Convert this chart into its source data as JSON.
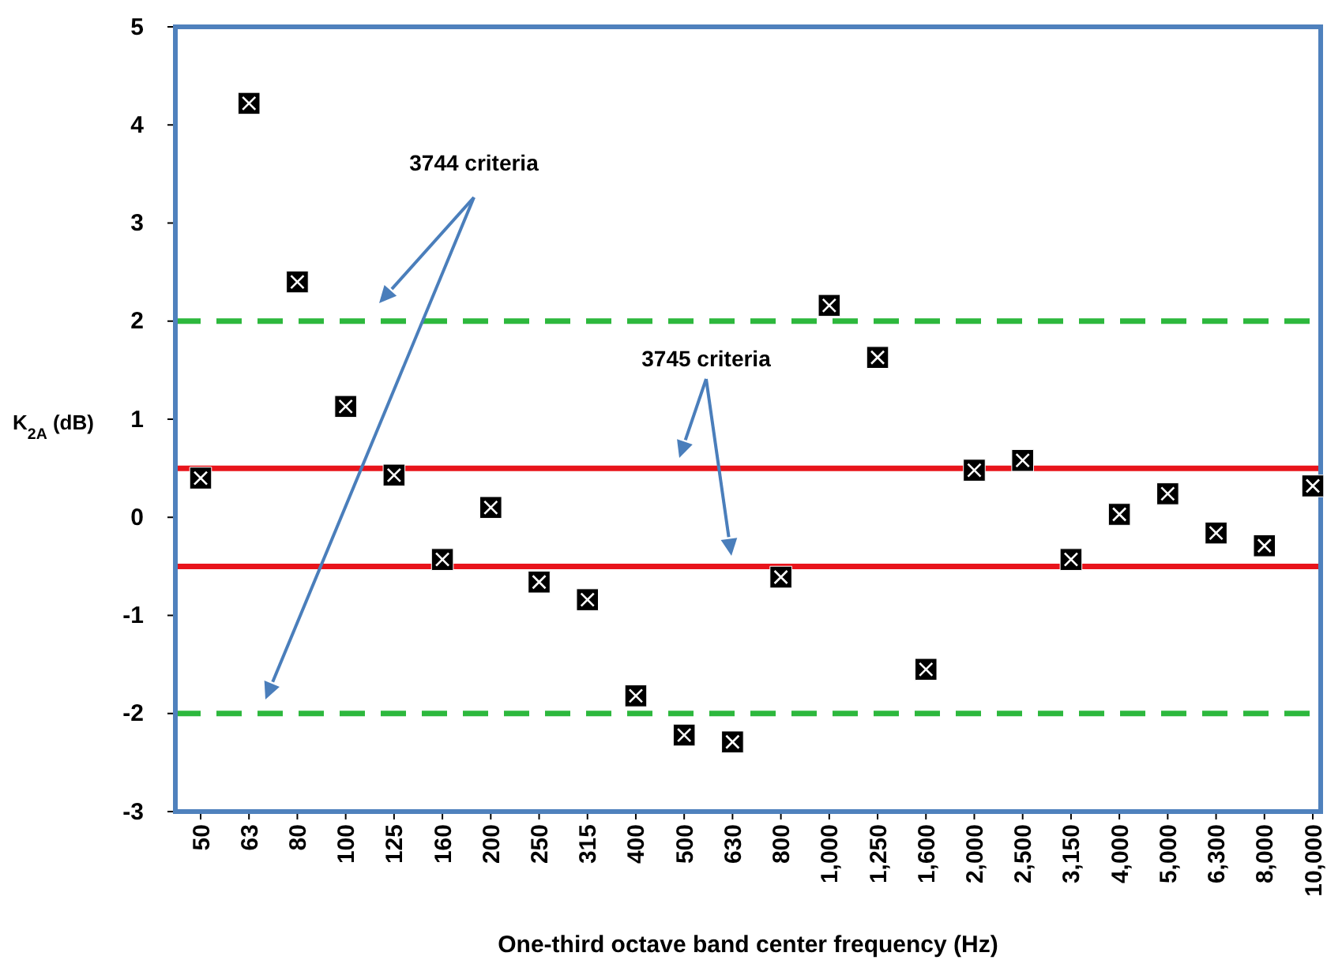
{
  "chart_data": {
    "type": "scatter",
    "xlabel": "One-third octave band center frequency (Hz)",
    "ylabel": "K$_{2A}$ (dB)",
    "categories": [
      "50",
      "63",
      "80",
      "100",
      "125",
      "160",
      "200",
      "250",
      "315",
      "400",
      "500",
      "630",
      "800",
      "1,000",
      "1,250",
      "1,600",
      "2,000",
      "2,500",
      "3,150",
      "4,000",
      "5,000",
      "6,300",
      "8,000",
      "10,000"
    ],
    "series": [
      {
        "color": "#000000",
        "values": [
          0.4,
          4.22,
          2.4,
          1.13,
          0.43,
          -0.43,
          0.1,
          -0.66,
          -0.84,
          -1.82,
          -2.22,
          -2.29,
          -0.61,
          2.16,
          1.63,
          -1.55,
          0.48,
          0.58,
          -0.43,
          0.03,
          0.24,
          -0.16,
          -0.29,
          0.32
        ]
      }
    ],
    "marker": "square",
    "ylim": [
      -3,
      5
    ],
    "yticks": [
      -3,
      -2,
      -1,
      0,
      1,
      2,
      3,
      4,
      5
    ],
    "grid": false,
    "ref_lines": [
      {
        "axis": "y",
        "value": 2,
        "color": "#2db83d",
        "line_style": "dashed"
      },
      {
        "axis": "y",
        "value": -2,
        "color": "#2db83d",
        "line_style": "dashed"
      },
      {
        "axis": "y",
        "value": 0.5,
        "color": "#e8141b",
        "line_style": "solid"
      },
      {
        "axis": "y",
        "value": -0.5,
        "color": "#e8141b",
        "line_style": "solid"
      }
    ],
    "annotations": [
      "3744 criteria",
      "3745 criteria"
    ]
  }
}
